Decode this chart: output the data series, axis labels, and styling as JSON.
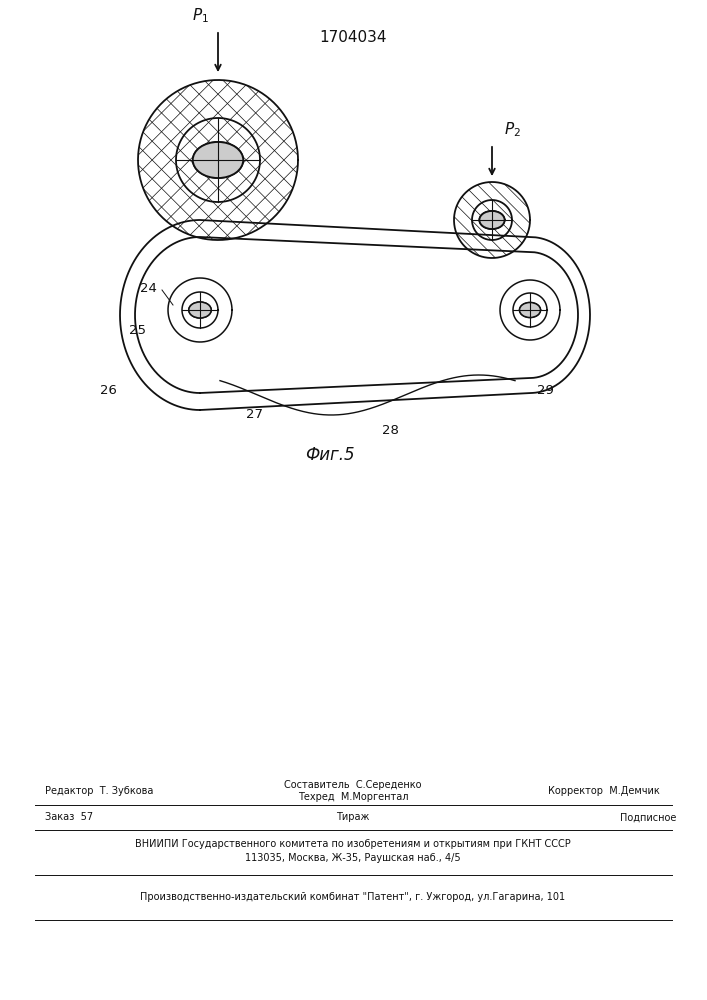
{
  "title": "1704034",
  "fig_label": "Фиг.5",
  "bg_color": "#ffffff",
  "line_color": "#111111",
  "footer": {
    "editor": "Редактор  Т. Зубкова",
    "composer": "Составитель  С.Середенко",
    "corrector": "Корректор  М.Демчик",
    "techred": "Техред  М.Моргентал",
    "order": "Заказ  57",
    "tirazh": "Тираж",
    "podpisnoe": "Подписное",
    "vniipи": "ВНИИПИ Государственного комитета по изобретениям и открытиям при ГКНТ СССР",
    "address": "113035, Москва, Ж-35, Раушская наб., 4/5",
    "publisher": "Производственно-издательский комбинат \"Патент\", г. Ужгород, ул.Гагарина, 101"
  }
}
